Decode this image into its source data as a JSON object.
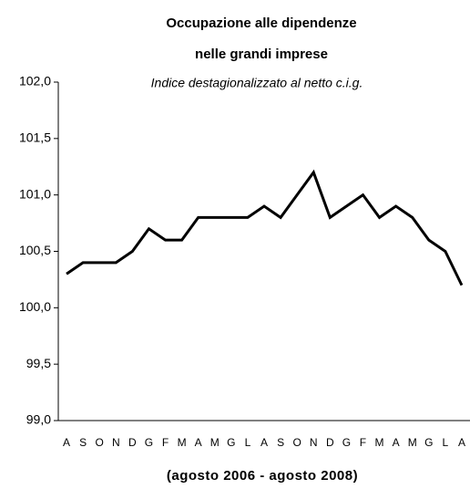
{
  "chart_data": {
    "type": "line",
    "title": [
      "Occupazione alle dipendenze",
      "nelle grandi imprese"
    ],
    "subtitle": "Indice destagionalizzato al netto c.i.g.",
    "x_label": "(agosto 2006 - agosto 2008)",
    "categories": [
      "A",
      "S",
      "O",
      "N",
      "D",
      "G",
      "F",
      "M",
      "A",
      "M",
      "G",
      "L",
      "A",
      "S",
      "O",
      "N",
      "D",
      "G",
      "F",
      "M",
      "A",
      "M",
      "G",
      "L",
      "A"
    ],
    "values": [
      100.3,
      100.4,
      100.4,
      100.4,
      100.5,
      100.7,
      100.6,
      100.6,
      100.8,
      100.8,
      100.8,
      100.8,
      100.9,
      100.8,
      101.0,
      101.2,
      100.8,
      100.9,
      101.0,
      100.8,
      100.9,
      100.8,
      100.6,
      100.5,
      100.2
    ],
    "color": "#000000",
    "ylim": [
      99,
      102
    ],
    "yticks": [
      {
        "value": 99,
        "label": "99,0"
      },
      {
        "value": 99.5,
        "label": "99,5"
      },
      {
        "value": 100,
        "label": "100,0"
      },
      {
        "value": 100.5,
        "label": "100,5"
      },
      {
        "value": 101,
        "label": "101,0"
      },
      {
        "value": 101.5,
        "label": "101,5"
      },
      {
        "value": 102,
        "label": "102,0"
      }
    ],
    "grid": false
  }
}
